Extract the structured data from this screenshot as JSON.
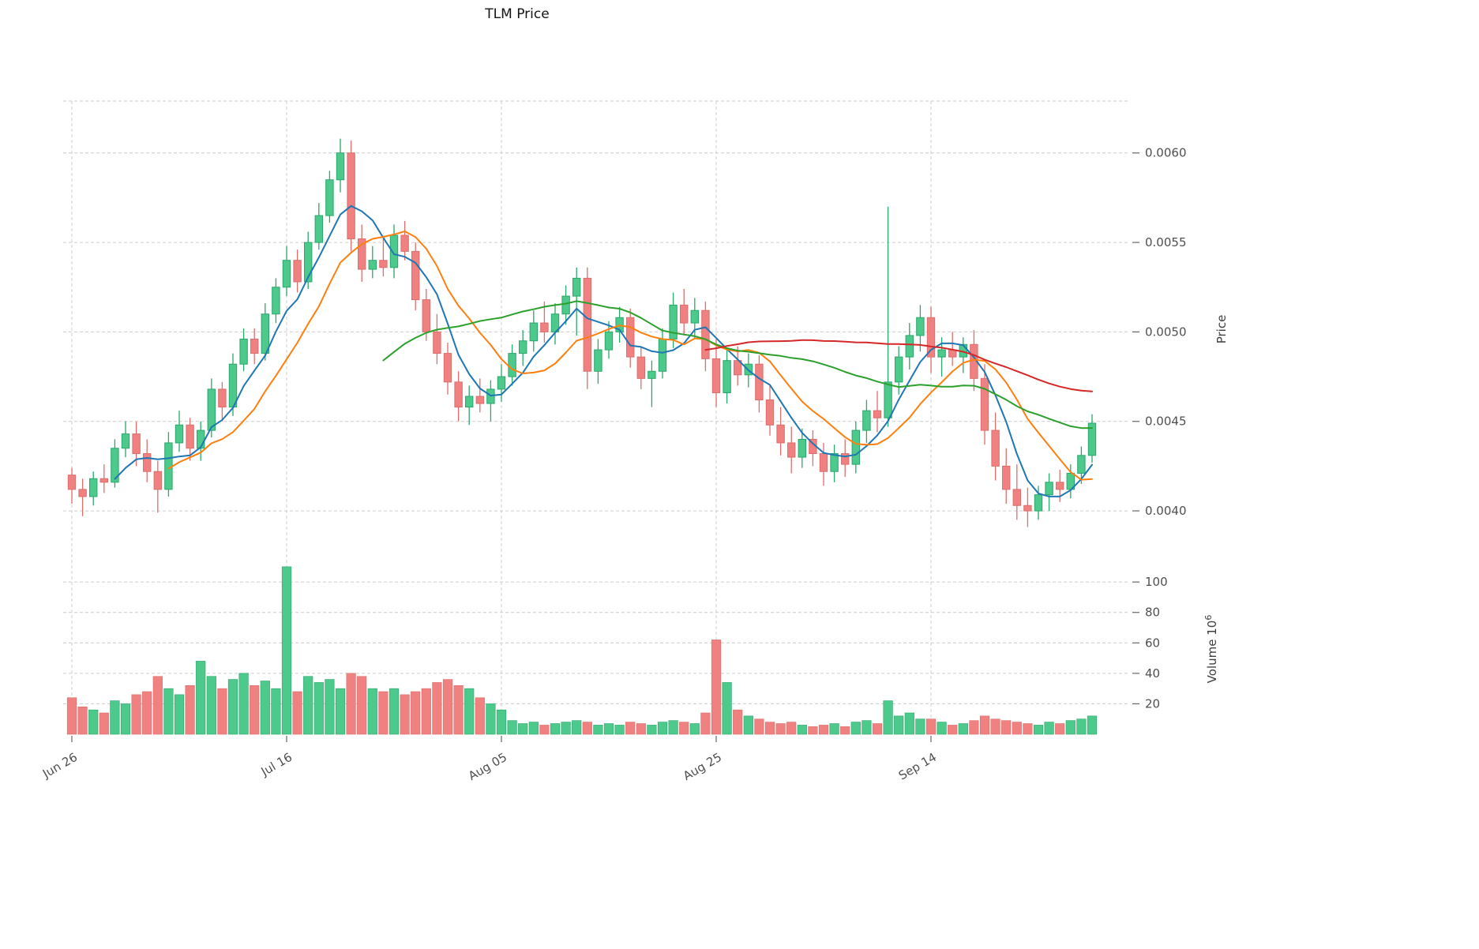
{
  "title": "TLM Price",
  "chart_data": {
    "type": "candlestick",
    "title": "TLM Price",
    "grid": true,
    "legend": "none",
    "x_axis": {
      "tick_labels": [
        "Jun 26",
        "Jul 16",
        "Aug 05",
        "Aug 25",
        "Sep 14"
      ],
      "tick_indices": [
        0,
        20,
        40,
        60,
        80
      ]
    },
    "price_axis": {
      "label": "Price",
      "tick_values": [
        0.004,
        0.0045,
        0.005,
        0.0055,
        0.006
      ],
      "range": [
        0.00374,
        0.00629
      ]
    },
    "volume_axis": {
      "label": "Volume",
      "unit_base": "10",
      "unit_exponent": "6",
      "tick_values": [
        20,
        40,
        60,
        80,
        100
      ],
      "range": [
        0,
        112
      ]
    },
    "style": {
      "up_color": "#4cc98b",
      "up_edge": "#2aa86b",
      "down_color": "#ef8180",
      "down_edge": "#de6d6c",
      "grid_color": "#cccccc",
      "tick_color": "#666666",
      "tick_text_color": "#4f4f4f",
      "ma_blue": "#1f77b4",
      "ma_orange": "#ff7f0e",
      "ma_green": "#2ca02c",
      "ma_red": "#d62728"
    },
    "moving_averages": [
      {
        "window": 5,
        "color": "#1f77b4"
      },
      {
        "window": 10,
        "color": "#ff7f0e"
      },
      {
        "window": 30,
        "color": "#2ca02c"
      },
      {
        "window": 60,
        "color": "#d62728"
      }
    ],
    "candles": {
      "open": [
        0.0042,
        0.00412,
        0.00408,
        0.00418,
        0.00416,
        0.00435,
        0.00443,
        0.00432,
        0.00422,
        0.00412,
        0.00438,
        0.00448,
        0.00435,
        0.00445,
        0.00468,
        0.00458,
        0.00482,
        0.00496,
        0.00488,
        0.0051,
        0.00525,
        0.0054,
        0.00528,
        0.0055,
        0.00565,
        0.00585,
        0.006,
        0.00552,
        0.00535,
        0.0054,
        0.00536,
        0.00554,
        0.00545,
        0.00518,
        0.005,
        0.00488,
        0.00472,
        0.00458,
        0.00464,
        0.0046,
        0.00468,
        0.00475,
        0.00488,
        0.00495,
        0.00505,
        0.005,
        0.0051,
        0.0052,
        0.0053,
        0.00478,
        0.0049,
        0.005,
        0.00508,
        0.00486,
        0.00474,
        0.00478,
        0.00496,
        0.00515,
        0.00505,
        0.00512,
        0.00485,
        0.00466,
        0.00484,
        0.00476,
        0.00482,
        0.00462,
        0.00448,
        0.00438,
        0.0043,
        0.0044,
        0.00432,
        0.00422,
        0.00432,
        0.00426,
        0.00445,
        0.00456,
        0.00452,
        0.00472,
        0.00486,
        0.00498,
        0.00508,
        0.00486,
        0.0049,
        0.00486,
        0.00493,
        0.00474,
        0.00445,
        0.00425,
        0.00412,
        0.00403,
        0.004,
        0.00409,
        0.00416,
        0.00412,
        0.00421,
        0.00431
      ],
      "high": [
        0.00424,
        0.00418,
        0.00422,
        0.00426,
        0.0044,
        0.0045,
        0.0045,
        0.0044,
        0.00428,
        0.00444,
        0.00456,
        0.00452,
        0.0045,
        0.00474,
        0.00472,
        0.00488,
        0.00502,
        0.00502,
        0.00516,
        0.0053,
        0.00548,
        0.00546,
        0.00556,
        0.00572,
        0.0059,
        0.00608,
        0.00607,
        0.0056,
        0.00548,
        0.00552,
        0.0056,
        0.00562,
        0.0055,
        0.00524,
        0.0051,
        0.00494,
        0.00478,
        0.0047,
        0.00474,
        0.00473,
        0.00482,
        0.00493,
        0.00501,
        0.00512,
        0.00517,
        0.00516,
        0.00526,
        0.00536,
        0.00536,
        0.00496,
        0.00506,
        0.00514,
        0.00513,
        0.00492,
        0.00484,
        0.00502,
        0.00522,
        0.00524,
        0.00519,
        0.00517,
        0.00496,
        0.0049,
        0.00492,
        0.00488,
        0.00487,
        0.0047,
        0.00458,
        0.00447,
        0.00446,
        0.00445,
        0.00438,
        0.00437,
        0.0044,
        0.0045,
        0.00462,
        0.00467,
        0.0057,
        0.00492,
        0.00505,
        0.00515,
        0.00514,
        0.00497,
        0.005,
        0.00497,
        0.00501,
        0.00482,
        0.00455,
        0.00435,
        0.00426,
        0.00413,
        0.00414,
        0.00421,
        0.00423,
        0.00426,
        0.00436,
        0.00454
      ],
      "low": [
        0.00404,
        0.00397,
        0.00403,
        0.0041,
        0.00413,
        0.0043,
        0.00425,
        0.00416,
        0.00399,
        0.00408,
        0.00433,
        0.00428,
        0.00428,
        0.00441,
        0.0045,
        0.00453,
        0.00478,
        0.00482,
        0.00484,
        0.00505,
        0.0052,
        0.00522,
        0.00524,
        0.00546,
        0.00561,
        0.00578,
        0.00545,
        0.00528,
        0.0053,
        0.00531,
        0.0053,
        0.0054,
        0.00512,
        0.00495,
        0.00482,
        0.00465,
        0.0045,
        0.00448,
        0.00455,
        0.0045,
        0.00461,
        0.0047,
        0.00481,
        0.00489,
        0.00494,
        0.00493,
        0.00504,
        0.00498,
        0.00468,
        0.00471,
        0.00485,
        0.00494,
        0.0048,
        0.00468,
        0.00458,
        0.00474,
        0.00491,
        0.00498,
        0.00496,
        0.00478,
        0.00458,
        0.0046,
        0.0047,
        0.00469,
        0.00455,
        0.00442,
        0.00431,
        0.00421,
        0.00424,
        0.00425,
        0.00414,
        0.00416,
        0.00419,
        0.00421,
        0.00438,
        0.00444,
        0.00447,
        0.00465,
        0.00479,
        0.00489,
        0.00477,
        0.00475,
        0.00481,
        0.00477,
        0.00467,
        0.00437,
        0.00417,
        0.00404,
        0.00395,
        0.00391,
        0.00395,
        0.004,
        0.00405,
        0.00407,
        0.00415,
        0.00427
      ],
      "close": [
        0.00412,
        0.00408,
        0.00418,
        0.00416,
        0.00435,
        0.00443,
        0.00432,
        0.00422,
        0.00412,
        0.00438,
        0.00448,
        0.00435,
        0.00445,
        0.00468,
        0.00458,
        0.00482,
        0.00496,
        0.00488,
        0.0051,
        0.00525,
        0.0054,
        0.00528,
        0.0055,
        0.00565,
        0.00585,
        0.006,
        0.00552,
        0.00535,
        0.0054,
        0.00536,
        0.00554,
        0.00545,
        0.00518,
        0.005,
        0.00488,
        0.00472,
        0.00458,
        0.00464,
        0.0046,
        0.00468,
        0.00475,
        0.00488,
        0.00495,
        0.00505,
        0.005,
        0.0051,
        0.0052,
        0.0053,
        0.00478,
        0.0049,
        0.005,
        0.00508,
        0.00486,
        0.00474,
        0.00478,
        0.00496,
        0.00515,
        0.00505,
        0.00512,
        0.00485,
        0.00466,
        0.00484,
        0.00476,
        0.00482,
        0.00462,
        0.00448,
        0.00438,
        0.0043,
        0.0044,
        0.00432,
        0.00422,
        0.00432,
        0.00426,
        0.00445,
        0.00456,
        0.00452,
        0.00472,
        0.00486,
        0.00498,
        0.00508,
        0.00486,
        0.0049,
        0.00486,
        0.00493,
        0.00474,
        0.00445,
        0.00425,
        0.00412,
        0.00403,
        0.004,
        0.00409,
        0.00416,
        0.00412,
        0.00421,
        0.00431,
        0.00449
      ]
    },
    "volume_millions": [
      24,
      18,
      16,
      14,
      22,
      20,
      26,
      28,
      38,
      30,
      26,
      32,
      48,
      38,
      30,
      36,
      40,
      32,
      35,
      30,
      110,
      28,
      38,
      34,
      36,
      30,
      40,
      38,
      30,
      28,
      30,
      26,
      28,
      30,
      34,
      36,
      32,
      30,
      24,
      20,
      16,
      9,
      7,
      8,
      6,
      7,
      8,
      9,
      8,
      6,
      7,
      6,
      8,
      7,
      6,
      8,
      9,
      8,
      7,
      14,
      62,
      34,
      16,
      12,
      10,
      8,
      7,
      8,
      6,
      5,
      6,
      7,
      5,
      8,
      9,
      7,
      22,
      12,
      14,
      10,
      10,
      8,
      6,
      7,
      9,
      12,
      10,
      9,
      8,
      7,
      6,
      8,
      7,
      9,
      10,
      12
    ]
  }
}
